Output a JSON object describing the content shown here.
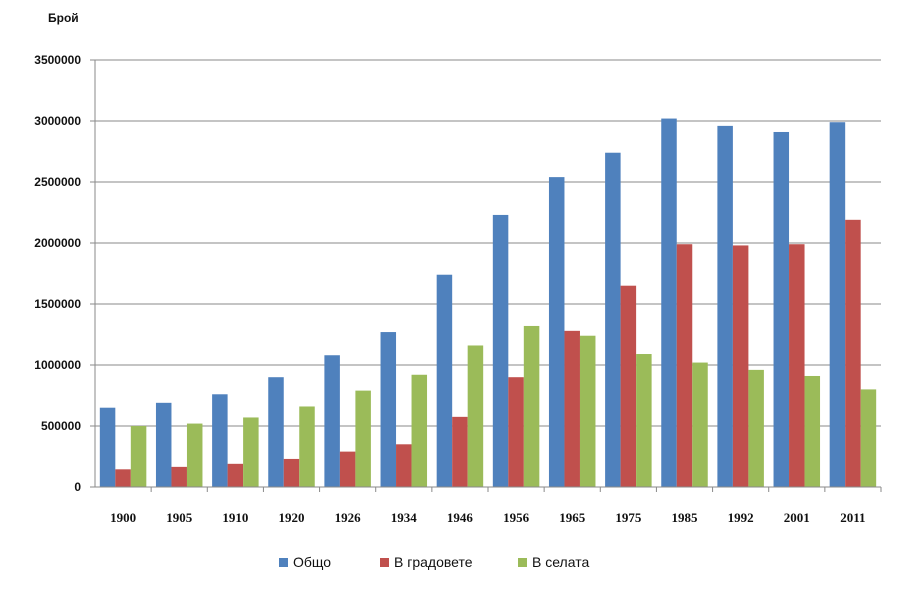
{
  "chart_data": {
    "type": "bar",
    "title": "",
    "xlabel": "",
    "ylabel": "Брой",
    "ylim": [
      0,
      3500000
    ],
    "yticks": [
      "0",
      "500000",
      "1000000",
      "1500000",
      "2000000",
      "2500000",
      "3000000",
      "3500000"
    ],
    "grid": true,
    "legend": "bottom",
    "categories": [
      "1900",
      "1905",
      "1910",
      "1920",
      "1926",
      "1934",
      "1946",
      "1956",
      "1965",
      "1975",
      "1985",
      "1992",
      "2001",
      "2011"
    ],
    "series": [
      {
        "name": "Общо",
        "color": "#4f81bd",
        "values": [
          650000,
          690000,
          760000,
          900000,
          1080000,
          1270000,
          1740000,
          2230000,
          2540000,
          2740000,
          3020000,
          2960000,
          2910000,
          2990000
        ]
      },
      {
        "name": "В градовете",
        "color": "#c0504d",
        "values": [
          145000,
          165000,
          190000,
          230000,
          290000,
          350000,
          575000,
          900000,
          1280000,
          1650000,
          1990000,
          1980000,
          1990000,
          2190000
        ]
      },
      {
        "name": "В селата",
        "color": "#9bbb59",
        "values": [
          500000,
          520000,
          570000,
          660000,
          790000,
          920000,
          1160000,
          1320000,
          1240000,
          1090000,
          1020000,
          960000,
          910000,
          800000
        ]
      }
    ]
  }
}
